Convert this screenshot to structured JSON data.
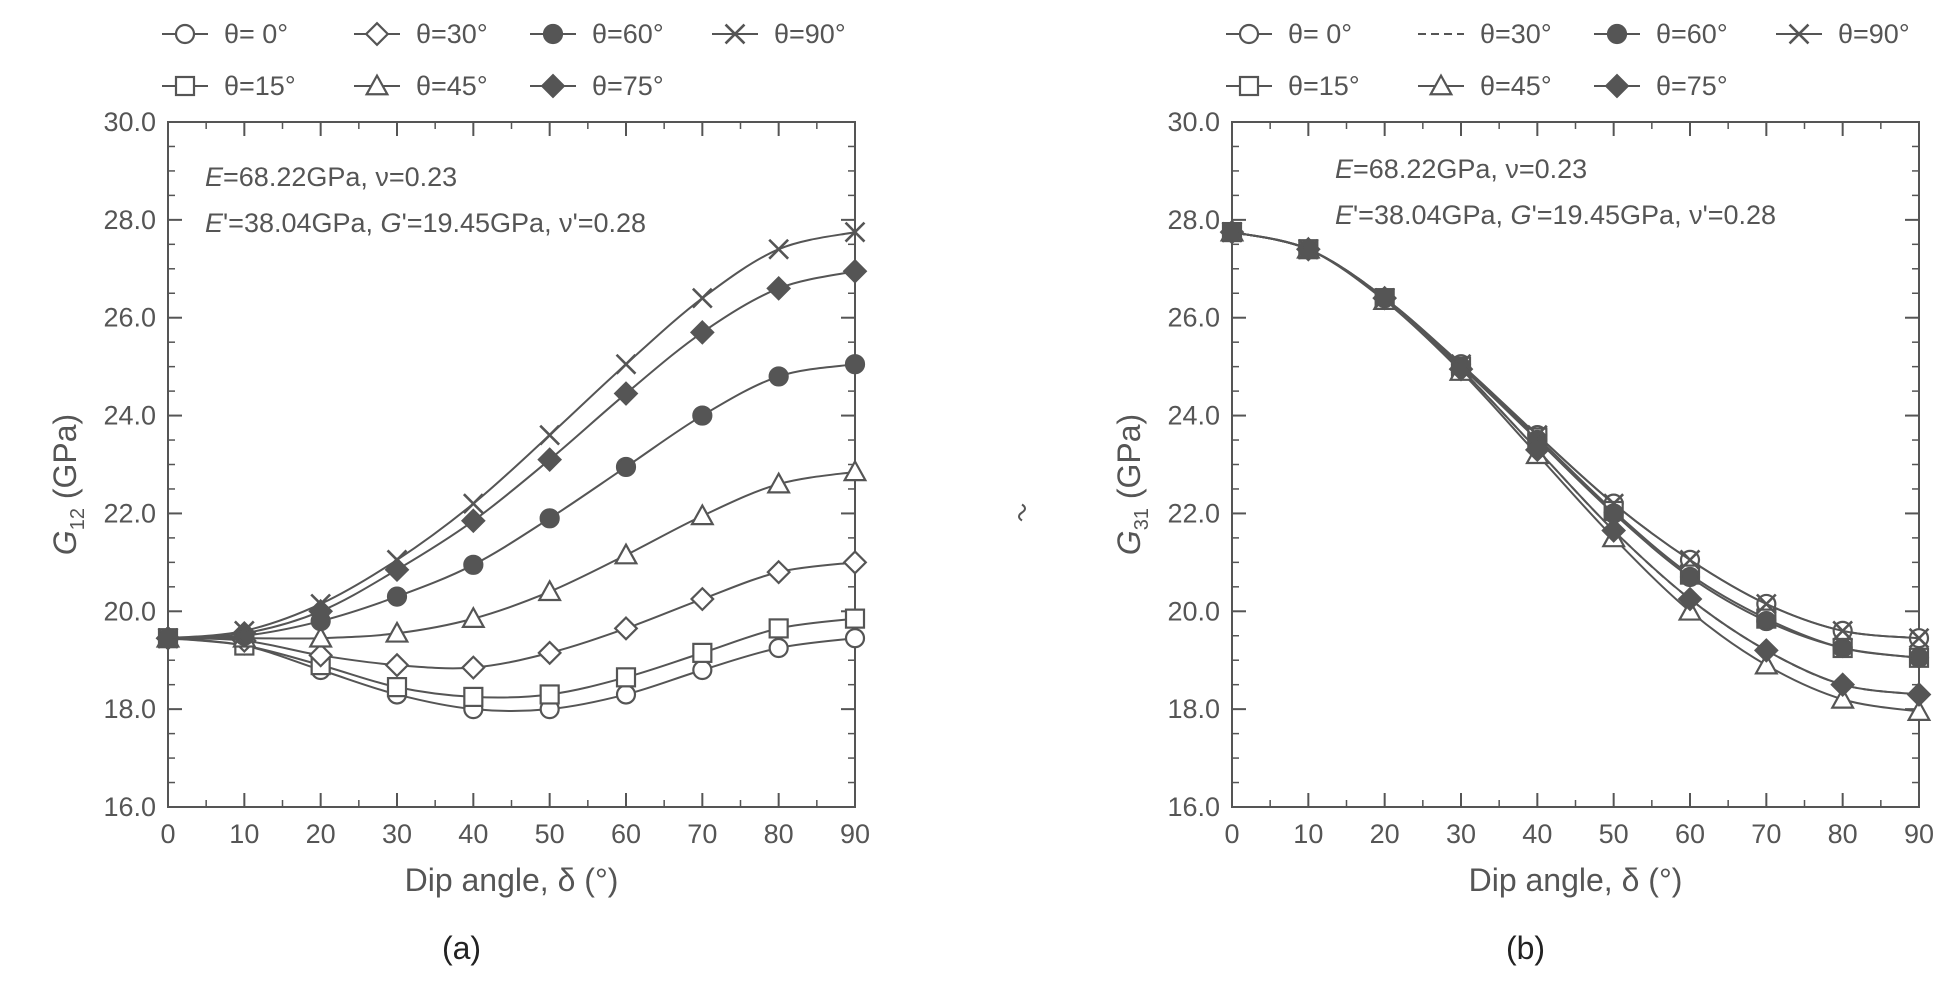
{
  "chart_data": [
    {
      "type": "line",
      "panel_label": "(a)",
      "xlabel": "Dip angle, δ (°)",
      "ylabel": {
        "symbol": "G",
        "subscript": "12",
        "unit": " (GPa)"
      },
      "xlim": [
        0,
        90
      ],
      "ylim": [
        16.0,
        30.0
      ],
      "xticks": [
        "0",
        "10",
        "20",
        "30",
        "40",
        "50",
        "60",
        "70",
        "80",
        "90"
      ],
      "yticks": [
        "16.0",
        "18.0",
        "20.0",
        "22.0",
        "24.0",
        "26.0",
        "28.0",
        "30.0"
      ],
      "annotations": [
        [
          {
            "t": "E",
            "i": true
          },
          {
            "t": "=68.22GPa, ν=0.23",
            "i": false
          }
        ],
        [
          {
            "t": "E",
            "i": true
          },
          {
            "t": "'=38.04GPa, ",
            "i": false
          },
          {
            "t": "G",
            "i": true
          },
          {
            "t": "'=19.45GPa, ν'=0.28",
            "i": false
          }
        ]
      ],
      "x": [
        0,
        10,
        20,
        30,
        40,
        50,
        60,
        70,
        80,
        90
      ],
      "series": [
        {
          "name": "θ= 0°",
          "marker": "circle-open",
          "values": [
            19.45,
            19.3,
            18.8,
            18.3,
            18.0,
            18.0,
            18.3,
            18.8,
            19.25,
            19.45
          ]
        },
        {
          "name": "θ=15°",
          "marker": "square-open",
          "values": [
            19.45,
            19.3,
            18.9,
            18.45,
            18.25,
            18.3,
            18.65,
            19.15,
            19.65,
            19.85
          ]
        },
        {
          "name": "θ=30°",
          "marker": "diamond-open",
          "values": [
            19.45,
            19.4,
            19.1,
            18.9,
            18.85,
            19.15,
            19.65,
            20.25,
            20.8,
            21.0
          ]
        },
        {
          "name": "θ=45°",
          "marker": "triangle-open",
          "values": [
            19.45,
            19.45,
            19.45,
            19.55,
            19.85,
            20.4,
            21.15,
            21.95,
            22.6,
            22.85
          ]
        },
        {
          "name": "θ=60°",
          "marker": "circle-filled",
          "values": [
            19.45,
            19.5,
            19.8,
            20.3,
            20.95,
            21.9,
            22.95,
            24.0,
            24.8,
            25.05
          ]
        },
        {
          "name": "θ=75°",
          "marker": "diamond-filled",
          "values": [
            19.45,
            19.55,
            20.0,
            20.85,
            21.85,
            23.1,
            24.45,
            25.7,
            26.6,
            26.95
          ]
        },
        {
          "name": "θ=90°",
          "marker": "cross",
          "values": [
            19.45,
            19.6,
            20.15,
            21.05,
            22.2,
            23.6,
            25.05,
            26.4,
            27.4,
            27.75
          ]
        }
      ]
    },
    {
      "type": "line",
      "panel_label": "(b)",
      "xlabel": "Dip angle, δ (°)",
      "ylabel": {
        "symbol": "G",
        "subscript": "31",
        "unit": " (GPa)"
      },
      "xlim": [
        0,
        90
      ],
      "ylim": [
        16.0,
        30.0
      ],
      "xticks": [
        "0",
        "10",
        "20",
        "30",
        "40",
        "50",
        "60",
        "70",
        "80",
        "90"
      ],
      "yticks": [
        "16.0",
        "18.0",
        "20.0",
        "22.0",
        "24.0",
        "26.0",
        "28.0",
        "30.0"
      ],
      "annotations": [
        [
          {
            "t": "E",
            "i": true
          },
          {
            "t": "=68.22GPa, ν=0.23",
            "i": false
          }
        ],
        [
          {
            "t": "E",
            "i": true
          },
          {
            "t": "'=38.04GPa, ",
            "i": false
          },
          {
            "t": "G",
            "i": true
          },
          {
            "t": "'=19.45GPa, ν'=0.28",
            "i": false
          }
        ]
      ],
      "x": [
        0,
        10,
        20,
        30,
        40,
        50,
        60,
        70,
        80,
        90
      ],
      "series": [
        {
          "name": "θ= 0°",
          "marker": "circle-open",
          "values": [
            27.75,
            27.4,
            26.4,
            25.05,
            23.6,
            22.2,
            21.05,
            20.15,
            19.6,
            19.45
          ]
        },
        {
          "name": "θ=15°",
          "marker": "square-open",
          "values": [
            27.75,
            27.4,
            26.4,
            25.0,
            23.55,
            22.05,
            20.75,
            19.85,
            19.25,
            19.05
          ]
        },
        {
          "name": "θ=30°",
          "marker": "dash",
          "values": [
            27.75,
            27.4,
            26.4,
            24.95,
            23.3,
            21.65,
            20.25,
            19.2,
            18.5,
            18.3
          ]
        },
        {
          "name": "θ=45°",
          "marker": "triangle-open",
          "values": [
            27.75,
            27.4,
            26.35,
            24.9,
            23.2,
            21.5,
            20.0,
            18.9,
            18.2,
            17.95
          ]
        },
        {
          "name": "θ=60°",
          "marker": "circle-filled",
          "values": [
            27.75,
            27.4,
            26.4,
            25.0,
            23.5,
            22.0,
            20.7,
            19.8,
            19.25,
            19.05
          ]
        },
        {
          "name": "θ=75°",
          "marker": "diamond-filled",
          "values": [
            27.75,
            27.4,
            26.4,
            24.95,
            23.3,
            21.65,
            20.25,
            19.2,
            18.5,
            18.3
          ]
        },
        {
          "name": "θ=90°",
          "marker": "cross",
          "values": [
            27.75,
            27.4,
            26.4,
            25.05,
            23.6,
            22.2,
            21.05,
            20.15,
            19.6,
            19.45
          ]
        }
      ]
    }
  ]
}
